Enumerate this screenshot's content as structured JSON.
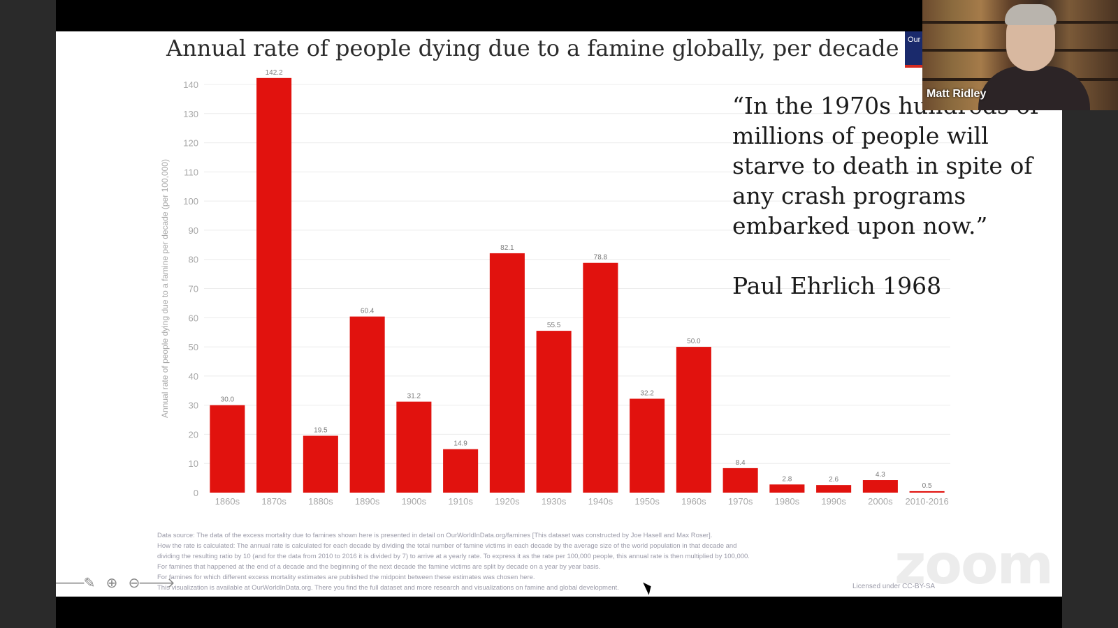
{
  "slide": {
    "title": "Annual rate of people dying due to a famine globally, per decade",
    "logo_text": "Our In",
    "quote": "“In the 1970s hundreds of millions of people will starve to death in spite of any crash programs embarked upon now.”",
    "quote_author": "Paul Ehrlich 1968",
    "footnotes": [
      "Data source: The data of the excess mortality due to famines shown here is presented in detail on OurWorldInData.org/famines [This dataset was constructed by Joe Hasell and Max Roser].",
      "How the rate is calculated: The annual rate is calculated for each decade by dividing the total number of famine victims in each decade by the average size of the world population in that decade and",
      "dividing the resulting ratio by 10 (and for the data from 2010 to 2016 it is divided by 7) to arrive at a yearly rate. To express it as the rate per 100,000 people, this annual rate is then multiplied by 100,000.",
      "For famines that happened at the end of a decade and the beginning of the next decade the famine victims are split by decade on a year by year basis.",
      "For famines for which different excess mortality estimates are published the midpoint between these estimates was chosen here.",
      "This visualization is available at OurWorldInData.org. There you find the full dataset and more research and visualizations on famine and global development."
    ],
    "license": "Licensed under CC-BY-SA"
  },
  "controls": {
    "prev_icon": "arrow-left-icon",
    "pen_icon": "pencil-icon",
    "zoom_in_icon": "zoom-in-icon",
    "zoom_out_icon": "zoom-out-icon",
    "next_icon": "arrow-right-icon"
  },
  "video": {
    "participant_name": "Matt Ridley",
    "watermark": "zoom"
  },
  "chart_data": {
    "type": "bar",
    "title": "Annual rate of people dying due to a famine globally, per decade",
    "ylabel": "Annual rate of people dying due to a famine per decade (per 100,000)",
    "xlabel": "",
    "categories": [
      "1860s",
      "1870s",
      "1880s",
      "1890s",
      "1900s",
      "1910s",
      "1920s",
      "1930s",
      "1940s",
      "1950s",
      "1960s",
      "1970s",
      "1980s",
      "1990s",
      "2000s",
      "2010-2016"
    ],
    "values": [
      30.0,
      142.2,
      19.5,
      60.4,
      31.2,
      14.9,
      82.1,
      55.5,
      78.8,
      32.2,
      50.0,
      8.4,
      2.8,
      2.6,
      4.3,
      0.5
    ],
    "value_labels": [
      "30.0",
      "142.2",
      "19.5",
      "60.4",
      "31.2",
      "14.9",
      "82.1",
      "55.5",
      "78.8",
      "32.2",
      "50.0",
      "8.4",
      "2.8",
      "2.6",
      "4.3",
      "0.5"
    ],
    "ylim": [
      0,
      140
    ],
    "yticks": [
      0,
      10,
      20,
      30,
      40,
      50,
      60,
      70,
      80,
      90,
      100,
      110,
      120,
      130,
      140
    ],
    "bar_color": "#e1120e",
    "grid": true,
    "legend": "none"
  }
}
